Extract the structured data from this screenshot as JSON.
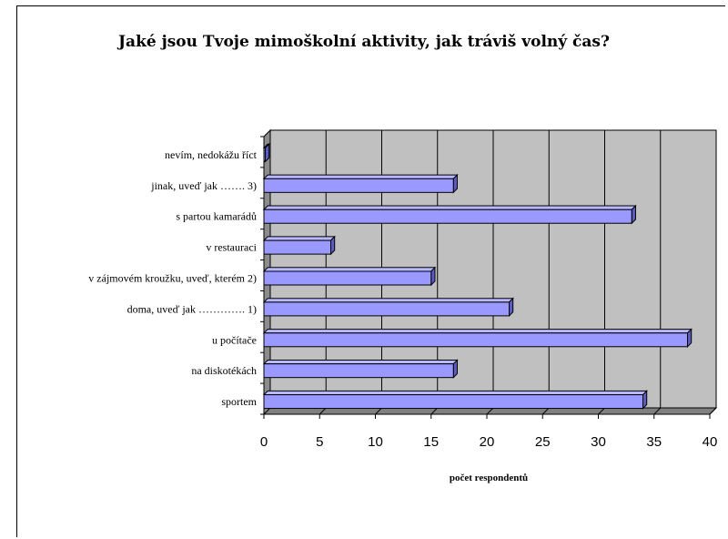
{
  "chart_data": {
    "type": "bar",
    "orientation": "horizontal",
    "title": "Jaké jsou Tvoje mimoškolní aktivity, jak tráviš volný čas?",
    "xlabel": "počet respondentů",
    "ylabel": "",
    "xlim": [
      0,
      40
    ],
    "xticks": [
      0,
      5,
      10,
      15,
      20,
      25,
      30,
      35,
      40
    ],
    "categories": [
      "sportem",
      "na diskotékách",
      "u počítače",
      "doma, uveď jak …………. 1)",
      "v zájmovém kroužku, uveď, kterém 2)",
      "v restauraci",
      "s partou kamarádů",
      "jinak, uveď jak ……. 3)",
      "nevím, nedokážu říct"
    ],
    "values": [
      34,
      17,
      38,
      22,
      15,
      6,
      33,
      17,
      0
    ],
    "grid": true,
    "legend": "none",
    "colors": {
      "bar_front": "#9999ff",
      "bar_top": "#b8b8ff",
      "bar_side": "#5c5cc0",
      "plot_wall": "#c0c0c0",
      "floor": "#808080",
      "gridline": "#000000"
    }
  }
}
